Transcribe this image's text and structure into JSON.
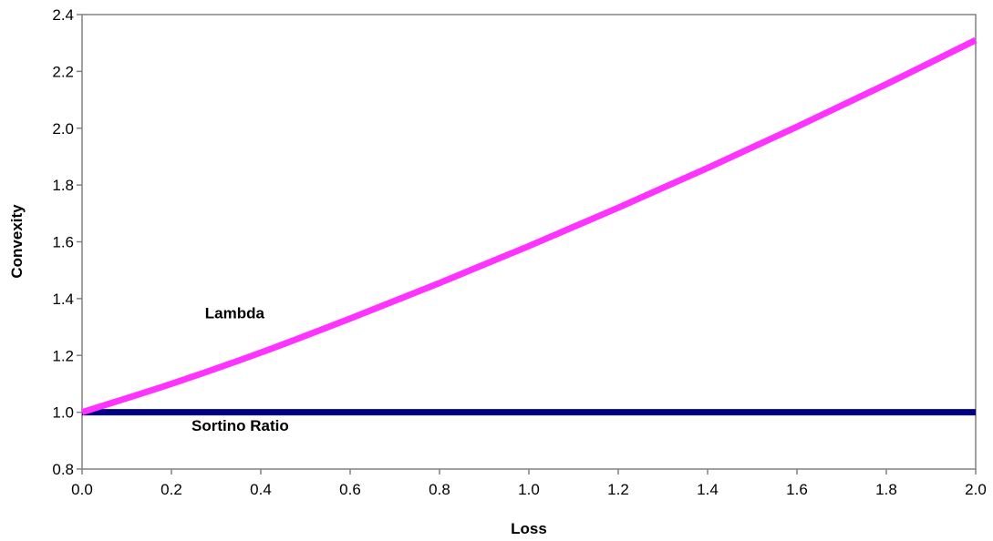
{
  "chart_data": {
    "type": "line",
    "title": "",
    "xlabel": "Loss",
    "ylabel": "Convexity",
    "xlim": [
      0.0,
      2.0
    ],
    "ylim": [
      0.8,
      2.4
    ],
    "x_ticks": [
      "0.0",
      "0.2",
      "0.4",
      "0.6",
      "0.8",
      "1.0",
      "1.2",
      "1.4",
      "1.6",
      "1.8",
      "2.0"
    ],
    "y_ticks": [
      "0.8",
      "1.0",
      "1.2",
      "1.4",
      "1.6",
      "1.8",
      "2.0",
      "2.2",
      "2.4"
    ],
    "grid": false,
    "legend": "none",
    "series": [
      {
        "name": "Lambda",
        "color": "#ff33ff",
        "x": [
          0.0,
          0.2,
          0.4,
          0.6,
          0.8,
          1.0,
          1.2,
          1.4,
          1.6,
          1.8,
          2.0
        ],
        "y": [
          1.0,
          1.1,
          1.21,
          1.33,
          1.455,
          1.585,
          1.72,
          1.86,
          2.005,
          2.155,
          2.31
        ]
      },
      {
        "name": "Sortino Ratio",
        "color": "#000080",
        "x": [
          0.0,
          2.0
        ],
        "y": [
          1.0,
          1.0
        ]
      }
    ],
    "annotations": [
      {
        "text": "Lambda",
        "x": 0.275,
        "y": 1.33
      },
      {
        "text": "Sortino Ratio",
        "x": 0.245,
        "y": 0.935
      }
    ]
  }
}
